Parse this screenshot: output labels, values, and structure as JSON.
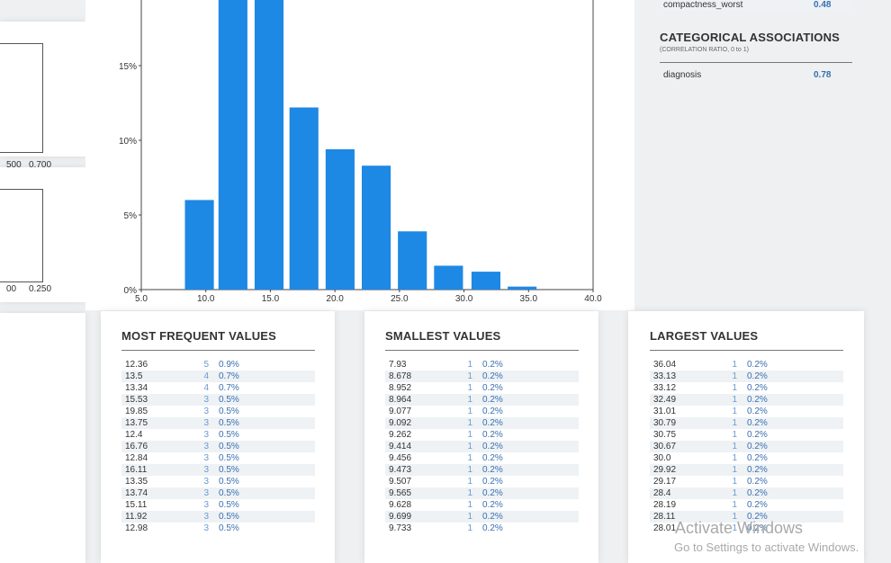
{
  "left_plots": {
    "top": {
      "tick_a": "500",
      "tick_b": "0.700"
    },
    "middle": {
      "tick_a": "00",
      "tick_b": "0.250"
    }
  },
  "chart_data": {
    "type": "bar",
    "x_ticks": [
      "5.0",
      "10.0",
      "15.0",
      "20.0",
      "25.0",
      "30.0",
      "35.0",
      "40.0"
    ],
    "y_ticks": [
      "0%",
      "5%",
      "10%",
      "15%"
    ],
    "xlim": [
      5,
      40
    ],
    "ylim": [
      0,
      20
    ],
    "bar_color": "#1e88e5",
    "bars": [
      {
        "x": 9.5,
        "y": 6.0
      },
      {
        "x": 12.1,
        "y": 20.0
      },
      {
        "x": 14.9,
        "y": 20.0
      },
      {
        "x": 17.6,
        "y": 12.2
      },
      {
        "x": 20.4,
        "y": 9.4
      },
      {
        "x": 23.2,
        "y": 8.3
      },
      {
        "x": 26.0,
        "y": 3.9
      },
      {
        "x": 28.8,
        "y": 1.6
      },
      {
        "x": 31.7,
        "y": 1.2
      },
      {
        "x": 34.5,
        "y": 0.2
      }
    ]
  },
  "right_panel": {
    "top_row": {
      "name": "compactness_worst",
      "value": "0.48"
    },
    "categorical_title": "CATEGORICAL ASSOCIATIONS",
    "categorical_subtitle": "(CORRELATION RATIO, 0 to 1)",
    "categorical_rows": [
      {
        "name": "diagnosis",
        "value": "0.78"
      }
    ]
  },
  "most_frequent": {
    "title": "MOST FREQUENT VALUES",
    "rows": [
      {
        "value": "12.36",
        "count": "5",
        "pct": "0.9%"
      },
      {
        "value": "13.5",
        "count": "4",
        "pct": "0.7%"
      },
      {
        "value": "13.34",
        "count": "4",
        "pct": "0.7%"
      },
      {
        "value": "15.53",
        "count": "3",
        "pct": "0.5%"
      },
      {
        "value": "19.85",
        "count": "3",
        "pct": "0.5%"
      },
      {
        "value": "13.75",
        "count": "3",
        "pct": "0.5%"
      },
      {
        "value": "12.4",
        "count": "3",
        "pct": "0.5%"
      },
      {
        "value": "16.76",
        "count": "3",
        "pct": "0.5%"
      },
      {
        "value": "12.84",
        "count": "3",
        "pct": "0.5%"
      },
      {
        "value": "16.11",
        "count": "3",
        "pct": "0.5%"
      },
      {
        "value": "13.35",
        "count": "3",
        "pct": "0.5%"
      },
      {
        "value": "13.74",
        "count": "3",
        "pct": "0.5%"
      },
      {
        "value": "15.11",
        "count": "3",
        "pct": "0.5%"
      },
      {
        "value": "11.92",
        "count": "3",
        "pct": "0.5%"
      },
      {
        "value": "12.98",
        "count": "3",
        "pct": "0.5%"
      }
    ]
  },
  "smallest": {
    "title": "SMALLEST VALUES",
    "rows": [
      {
        "value": "7.93",
        "count": "1",
        "pct": "0.2%"
      },
      {
        "value": "8.678",
        "count": "1",
        "pct": "0.2%"
      },
      {
        "value": "8.952",
        "count": "1",
        "pct": "0.2%"
      },
      {
        "value": "8.964",
        "count": "1",
        "pct": "0.2%"
      },
      {
        "value": "9.077",
        "count": "1",
        "pct": "0.2%"
      },
      {
        "value": "9.092",
        "count": "1",
        "pct": "0.2%"
      },
      {
        "value": "9.262",
        "count": "1",
        "pct": "0.2%"
      },
      {
        "value": "9.414",
        "count": "1",
        "pct": "0.2%"
      },
      {
        "value": "9.456",
        "count": "1",
        "pct": "0.2%"
      },
      {
        "value": "9.473",
        "count": "1",
        "pct": "0.2%"
      },
      {
        "value": "9.507",
        "count": "1",
        "pct": "0.2%"
      },
      {
        "value": "9.565",
        "count": "1",
        "pct": "0.2%"
      },
      {
        "value": "9.628",
        "count": "1",
        "pct": "0.2%"
      },
      {
        "value": "9.699",
        "count": "1",
        "pct": "0.2%"
      },
      {
        "value": "9.733",
        "count": "1",
        "pct": "0.2%"
      }
    ]
  },
  "largest": {
    "title": "LARGEST VALUES",
    "rows": [
      {
        "value": "36.04",
        "count": "1",
        "pct": "0.2%"
      },
      {
        "value": "33.13",
        "count": "1",
        "pct": "0.2%"
      },
      {
        "value": "33.12",
        "count": "1",
        "pct": "0.2%"
      },
      {
        "value": "32.49",
        "count": "1",
        "pct": "0.2%"
      },
      {
        "value": "31.01",
        "count": "1",
        "pct": "0.2%"
      },
      {
        "value": "30.79",
        "count": "1",
        "pct": "0.2%"
      },
      {
        "value": "30.75",
        "count": "1",
        "pct": "0.2%"
      },
      {
        "value": "30.67",
        "count": "1",
        "pct": "0.2%"
      },
      {
        "value": "30.0",
        "count": "1",
        "pct": "0.2%"
      },
      {
        "value": "29.92",
        "count": "1",
        "pct": "0.2%"
      },
      {
        "value": "29.17",
        "count": "1",
        "pct": "0.2%"
      },
      {
        "value": "28.4",
        "count": "1",
        "pct": "0.2%"
      },
      {
        "value": "28.19",
        "count": "1",
        "pct": "0.2%"
      },
      {
        "value": "28.11",
        "count": "1",
        "pct": "0.2%"
      },
      {
        "value": "28.01",
        "count": "1",
        "pct": "0.2%"
      }
    ]
  },
  "watermark": {
    "line1": "Activate Windows",
    "line2": "Go to Settings to activate Windows."
  }
}
